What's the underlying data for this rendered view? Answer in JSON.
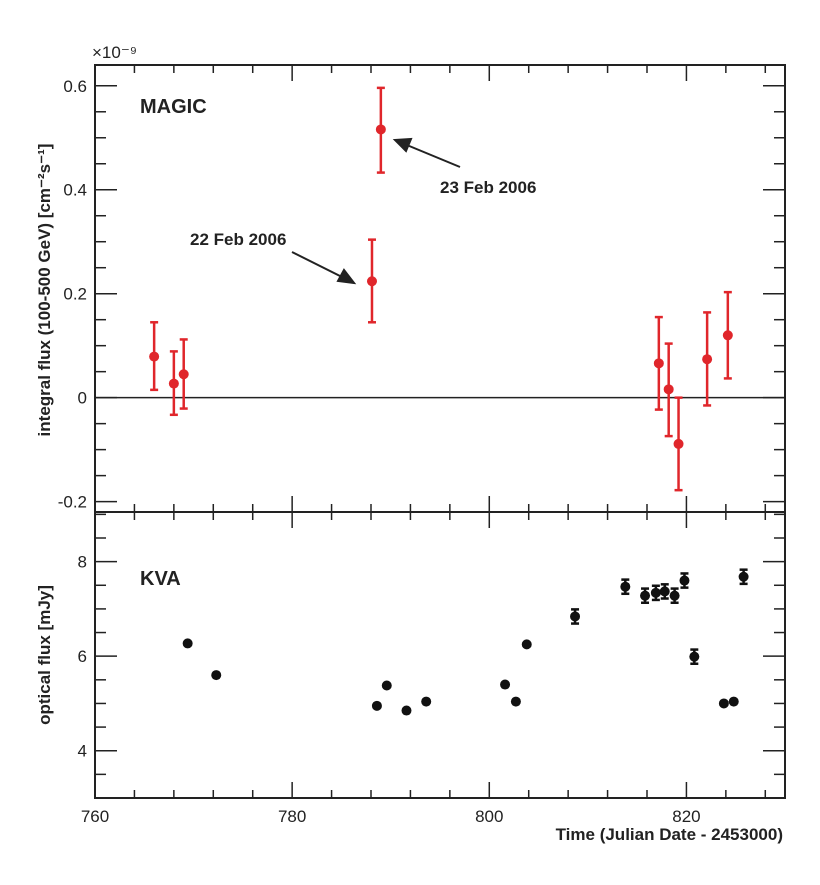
{
  "chart_data": [
    {
      "type": "scatter",
      "panel_label": "MAGIC",
      "ylabel": "integral flux (100-500 GeV) [cm⁻²s⁻¹]",
      "y_exponent": "×10⁻⁹",
      "xlim": [
        760,
        830
      ],
      "ylim": [
        -0.22,
        0.64
      ],
      "yticks": [
        "-0.2",
        "0",
        "0.2",
        "0.4",
        "0.6"
      ],
      "color": "#e0262b",
      "zero_line": true,
      "points": [
        {
          "x": 766.0,
          "y": 0.079,
          "lo": 0.015,
          "hi": 0.145
        },
        {
          "x": 768.0,
          "y": 0.027,
          "lo": -0.033,
          "hi": 0.089
        },
        {
          "x": 769.0,
          "y": 0.045,
          "lo": -0.021,
          "hi": 0.112
        },
        {
          "x": 788.1,
          "y": 0.224,
          "lo": 0.145,
          "hi": 0.304
        },
        {
          "x": 789.0,
          "y": 0.516,
          "lo": 0.433,
          "hi": 0.596
        },
        {
          "x": 817.2,
          "y": 0.066,
          "lo": -0.023,
          "hi": 0.155
        },
        {
          "x": 818.2,
          "y": 0.016,
          "lo": -0.074,
          "hi": 0.104
        },
        {
          "x": 819.2,
          "y": -0.089,
          "lo": -0.178,
          "hi": 0.0
        },
        {
          "x": 822.1,
          "y": 0.074,
          "lo": -0.015,
          "hi": 0.164
        },
        {
          "x": 824.2,
          "y": 0.12,
          "lo": 0.037,
          "hi": 0.203
        }
      ],
      "annotations": [
        {
          "text": "22 Feb 2006",
          "points_to_x": 788.1
        },
        {
          "text": "23 Feb 2006",
          "points_to_x": 789.0
        }
      ]
    },
    {
      "type": "scatter",
      "panel_label": "KVA",
      "ylabel": "optical flux [mJy]",
      "xlabel": "Time (Julian Date - 2453000)",
      "xlim": [
        760,
        830
      ],
      "ylim": [
        3,
        9.05
      ],
      "xticks": [
        "760",
        "780",
        "800",
        "820"
      ],
      "yticks": [
        "4",
        "6",
        "8"
      ],
      "color": "#111111",
      "points": [
        {
          "x": 769.4,
          "y": 6.27,
          "err": 0
        },
        {
          "x": 772.3,
          "y": 5.6,
          "err": 0
        },
        {
          "x": 788.6,
          "y": 4.95,
          "err": 0
        },
        {
          "x": 789.6,
          "y": 5.38,
          "err": 0
        },
        {
          "x": 791.6,
          "y": 4.85,
          "err": 0
        },
        {
          "x": 793.6,
          "y": 5.04,
          "err": 0
        },
        {
          "x": 801.6,
          "y": 5.4,
          "err": 0
        },
        {
          "x": 802.7,
          "y": 5.04,
          "err": 0
        },
        {
          "x": 803.8,
          "y": 6.25,
          "err": 0
        },
        {
          "x": 808.7,
          "y": 6.84,
          "err": 0.15
        },
        {
          "x": 813.8,
          "y": 7.47,
          "err": 0.15
        },
        {
          "x": 815.8,
          "y": 7.28,
          "err": 0.15
        },
        {
          "x": 816.9,
          "y": 7.34,
          "err": 0.15
        },
        {
          "x": 817.8,
          "y": 7.37,
          "err": 0.15
        },
        {
          "x": 818.8,
          "y": 7.28,
          "err": 0.15
        },
        {
          "x": 819.8,
          "y": 7.6,
          "err": 0.15
        },
        {
          "x": 820.8,
          "y": 5.99,
          "err": 0.15
        },
        {
          "x": 823.8,
          "y": 5.0,
          "err": 0
        },
        {
          "x": 824.8,
          "y": 5.04,
          "err": 0
        },
        {
          "x": 825.8,
          "y": 7.68,
          "err": 0.15
        }
      ]
    }
  ]
}
